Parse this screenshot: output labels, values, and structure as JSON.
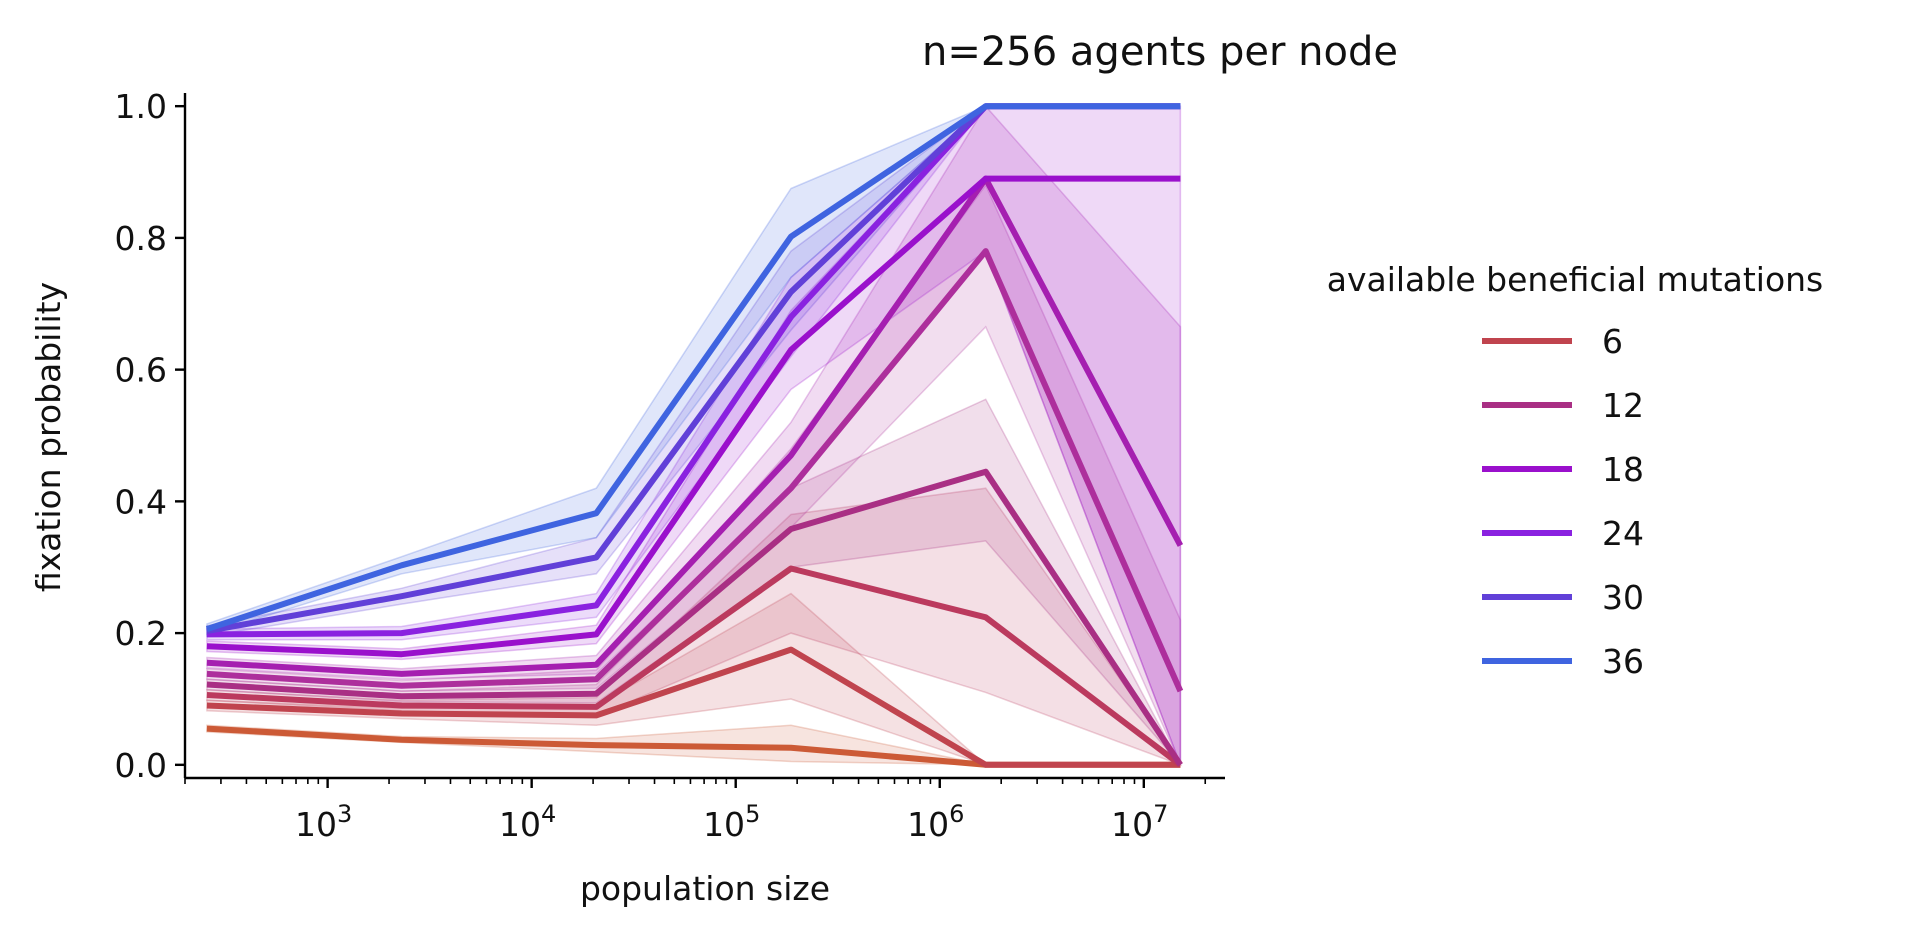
{
  "chart_data": {
    "type": "line",
    "title": "n=256 agents per node",
    "xlabel": "population size",
    "ylabel": "fixation probability",
    "xscale": "log",
    "xlim": [
      200,
      25000000
    ],
    "ylim": [
      -0.02,
      1.02
    ],
    "x": [
      256,
      2304,
      20736,
      186624,
      1679616,
      15116544
    ],
    "xticks": [
      {
        "value": 1000,
        "base": "10",
        "exp": "3"
      },
      {
        "value": 10000,
        "base": "10",
        "exp": "4"
      },
      {
        "value": 100000,
        "base": "10",
        "exp": "5"
      },
      {
        "value": 1000000,
        "base": "10",
        "exp": "6"
      },
      {
        "value": 10000000,
        "base": "10",
        "exp": "7"
      }
    ],
    "yticks": [
      "0.0",
      "0.2",
      "0.4",
      "0.6",
      "0.8",
      "1.0"
    ],
    "grid": false,
    "legend": {
      "title": "available beneficial mutations",
      "placement": "right"
    },
    "series": [
      {
        "name": "",
        "color": "#cc5a36",
        "band": "#cc5a36",
        "in_legend": false,
        "values": [
          0.055,
          0.038,
          0.03,
          0.026,
          0.0,
          0.0
        ],
        "lower": [
          0.05,
          0.034,
          0.02,
          0.005,
          0.0,
          0.0
        ],
        "upper": [
          0.06,
          0.043,
          0.04,
          0.06,
          0.0,
          0.0
        ]
      },
      {
        "name": "6",
        "color": "#c0444e",
        "band": "#c0444e",
        "in_legend": true,
        "values": [
          0.09,
          0.078,
          0.075,
          0.175,
          0.0,
          0.0
        ],
        "lower": [
          0.082,
          0.07,
          0.06,
          0.1,
          0.0,
          0.0
        ],
        "upper": [
          0.098,
          0.086,
          0.09,
          0.26,
          0.0,
          0.0
        ]
      },
      {
        "name": "",
        "color": "#bb3a5e",
        "band": "#bb3a5e",
        "in_legend": false,
        "values": [
          0.106,
          0.09,
          0.088,
          0.298,
          0.224,
          0.0
        ],
        "lower": [
          0.098,
          0.082,
          0.074,
          0.2,
          0.11,
          0.0
        ],
        "upper": [
          0.114,
          0.098,
          0.102,
          0.38,
          0.42,
          0.0
        ]
      },
      {
        "name": "12",
        "color": "#a92f84",
        "band": "#a92f84",
        "in_legend": true,
        "values": [
          0.122,
          0.104,
          0.108,
          0.358,
          0.445,
          0.0
        ],
        "lower": [
          0.114,
          0.096,
          0.094,
          0.3,
          0.34,
          0.0
        ],
        "upper": [
          0.13,
          0.112,
          0.122,
          0.42,
          0.555,
          0.0
        ]
      },
      {
        "name": "",
        "color": "#ad2f9c",
        "band": "#ad2f9c",
        "in_legend": false,
        "values": [
          0.138,
          0.12,
          0.13,
          0.42,
          0.78,
          0.112
        ],
        "lower": [
          0.13,
          0.112,
          0.116,
          0.36,
          0.665,
          0.0
        ],
        "upper": [
          0.146,
          0.128,
          0.144,
          0.48,
          0.88,
          0.22
        ]
      },
      {
        "name": "",
        "color": "#a51fb0",
        "band": "#a51fb0",
        "in_legend": false,
        "values": [
          0.155,
          0.138,
          0.152,
          0.47,
          0.89,
          0.333
        ],
        "lower": [
          0.147,
          0.13,
          0.138,
          0.42,
          0.78,
          0.0
        ],
        "upper": [
          0.163,
          0.146,
          0.166,
          0.52,
          1.0,
          0.665
        ]
      },
      {
        "name": "18",
        "color": "#9a10cc",
        "band": "#9a10cc",
        "in_legend": true,
        "values": [
          0.18,
          0.168,
          0.198,
          0.63,
          0.89,
          0.89
        ],
        "lower": [
          0.172,
          0.16,
          0.184,
          0.57,
          0.78,
          0.0
        ],
        "upper": [
          0.188,
          0.176,
          0.212,
          0.69,
          1.0,
          1.0
        ]
      },
      {
        "name": "24",
        "color": "#8a22e0",
        "band": "#8a22e0",
        "in_legend": true,
        "values": [
          0.198,
          0.2,
          0.242,
          0.68,
          1.0,
          1.0
        ],
        "lower": [
          0.19,
          0.19,
          0.224,
          0.62,
          1.0,
          1.0
        ],
        "upper": [
          0.206,
          0.21,
          0.26,
          0.74,
          1.0,
          1.0
        ]
      },
      {
        "name": "30",
        "color": "#6140d8",
        "band": "#6140d8",
        "in_legend": true,
        "values": [
          0.203,
          0.256,
          0.315,
          0.718,
          1.0,
          1.0
        ],
        "lower": [
          0.195,
          0.244,
          0.29,
          0.66,
          1.0,
          1.0
        ],
        "upper": [
          0.211,
          0.268,
          0.345,
          0.78,
          1.0,
          1.0
        ]
      },
      {
        "name": "36",
        "color": "#3f64e0",
        "band": "#3f64e0",
        "in_legend": true,
        "values": [
          0.206,
          0.303,
          0.382,
          0.802,
          1.0,
          1.0
        ],
        "lower": [
          0.198,
          0.29,
          0.345,
          0.74,
          1.0,
          1.0
        ],
        "upper": [
          0.214,
          0.316,
          0.42,
          0.875,
          1.0,
          1.0
        ]
      }
    ]
  }
}
